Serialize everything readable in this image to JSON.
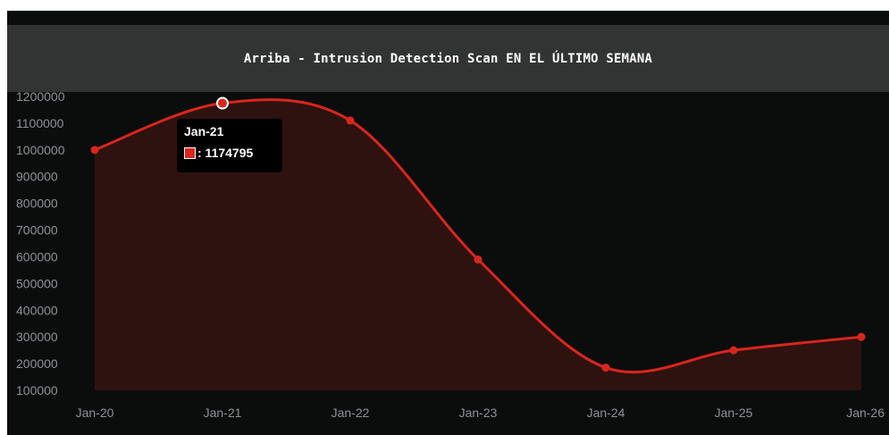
{
  "colors": {
    "background": "#0b0c0c",
    "header_bg": "#323333",
    "line": "#d9261c",
    "area": "#2e1210",
    "tick_text": "#8e9195"
  },
  "chart_data": {
    "type": "area",
    "title": "Arriba - Intrusion Detection Scan EN EL ÚLTIMO SEMANA",
    "xlabel": "",
    "ylabel": "",
    "categories": [
      "Jan-20",
      "Jan-21",
      "Jan-22",
      "Jan-23",
      "Jan-24",
      "Jan-25",
      "Jan-26"
    ],
    "series": [
      {
        "values": [
          1000000,
          1174795,
          1110000,
          590000,
          185000,
          250000,
          300000
        ]
      }
    ],
    "ylim": [
      100000,
      1200000
    ],
    "yticks": [
      1200000,
      1100000,
      1000000,
      900000,
      800000,
      700000,
      600000,
      500000,
      400000,
      300000,
      200000,
      100000
    ],
    "grid": false,
    "smooth": true
  },
  "tooltip": {
    "category": "Jan-21",
    "value_text": ": 1174795"
  }
}
